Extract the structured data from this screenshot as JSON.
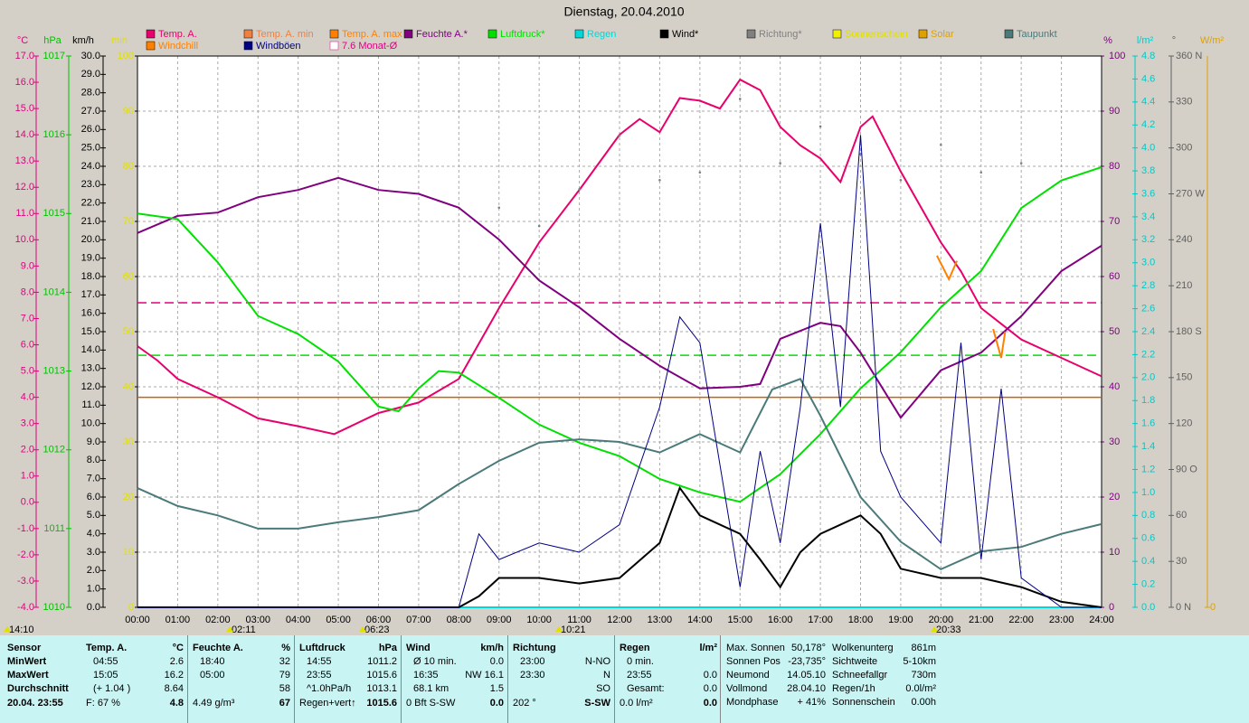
{
  "chart_data": {
    "type": "line",
    "title": "Dienstag, 20.04.2010",
    "axes": {
      "temp": {
        "title": "°C",
        "color": "#e0007f",
        "lim": [
          -4,
          17
        ],
        "ticks": [
          {
            "value": -4,
            "label": "-4.0"
          },
          {
            "value": -3,
            "label": "-3.0"
          },
          {
            "value": -2,
            "label": "-2.0"
          },
          {
            "value": -1,
            "label": "-1.0"
          },
          {
            "value": 0,
            "label": "0.0"
          },
          {
            "value": 1,
            "label": "1.0"
          },
          {
            "value": 2,
            "label": "2.0"
          },
          {
            "value": 3,
            "label": "3.0"
          },
          {
            "value": 4,
            "label": "4.0"
          },
          {
            "value": 5,
            "label": "5.0"
          },
          {
            "value": 6,
            "label": "6.0"
          },
          {
            "value": 7,
            "label": "7.0"
          },
          {
            "value": 8,
            "label": "8.0"
          },
          {
            "value": 9,
            "label": "9.0"
          },
          {
            "value": 10,
            "label": "10.0"
          },
          {
            "value": 11,
            "label": "11.0"
          },
          {
            "value": 12,
            "label": "12.0"
          },
          {
            "value": 13,
            "label": "13.0"
          },
          {
            "value": 14,
            "label": "14.0"
          },
          {
            "value": 15,
            "label": "15.0"
          },
          {
            "value": 16,
            "label": "16.0"
          },
          {
            "value": 17,
            "label": "17.0"
          }
        ]
      },
      "hpa": {
        "title": "hPa",
        "color": "#00c000",
        "lim": [
          1010,
          1017
        ],
        "ticks": [
          1010,
          1011,
          1012,
          1013,
          1014,
          1015,
          1016,
          1017
        ]
      },
      "kmh": {
        "title": "km/h",
        "color": "#000000",
        "lim": [
          0,
          30
        ],
        "ticks": [
          {
            "value": 0,
            "label": "0.0"
          },
          {
            "value": 1,
            "label": "1.0"
          },
          {
            "value": 2,
            "label": "2.0"
          },
          {
            "value": 3,
            "label": "3.0"
          },
          {
            "value": 4,
            "label": "4.0"
          },
          {
            "value": 5,
            "label": "5.0"
          },
          {
            "value": 6,
            "label": "6.0"
          },
          {
            "value": 7,
            "label": "7.0"
          },
          {
            "value": 8,
            "label": "8.0"
          },
          {
            "value": 9,
            "label": "9.0"
          },
          {
            "value": 10,
            "label": "10.0"
          },
          {
            "value": 11,
            "label": "11.0"
          },
          {
            "value": 12,
            "label": "12.0"
          },
          {
            "value": 13,
            "label": "13.0"
          },
          {
            "value": 14,
            "label": "14.0"
          },
          {
            "value": 15,
            "label": "15.0"
          },
          {
            "value": 16,
            "label": "16.0"
          },
          {
            "value": 17,
            "label": "17.0"
          },
          {
            "value": 18,
            "label": "18.0"
          },
          {
            "value": 19,
            "label": "19.0"
          },
          {
            "value": 20,
            "label": "20.0"
          },
          {
            "value": 21,
            "label": "21.0"
          },
          {
            "value": 22,
            "label": "22.0"
          },
          {
            "value": 23,
            "label": "23.0"
          },
          {
            "value": 24,
            "label": "24.0"
          },
          {
            "value": 25,
            "label": "25.0"
          },
          {
            "value": 26,
            "label": "26.0"
          },
          {
            "value": 27,
            "label": "27.0"
          },
          {
            "value": 28,
            "label": "28.0"
          },
          {
            "value": 29,
            "label": "29.0"
          },
          {
            "value": 30,
            "label": "30.0"
          }
        ]
      },
      "min": {
        "title": "min",
        "color": "#e0e000",
        "lim": [
          0,
          100
        ],
        "ticks": [
          0,
          10,
          20,
          30,
          40,
          50,
          60,
          70,
          80,
          90,
          100
        ]
      },
      "pct": {
        "title": "%",
        "color": "#800080",
        "lim": [
          0,
          100
        ],
        "ticks": [
          0,
          10,
          20,
          30,
          40,
          50,
          60,
          70,
          80,
          90,
          100
        ]
      },
      "mm": {
        "title": "l/m²",
        "color": "#00c8c8",
        "lim": [
          0,
          4.8
        ],
        "ticks": [
          {
            "value": 0,
            "label": "0.0"
          },
          0.2,
          0.4,
          0.6,
          0.8,
          {
            "value": 1,
            "label": "1.0"
          },
          1.2,
          1.4,
          1.6,
          1.8,
          {
            "value": 2,
            "label": "2.0"
          },
          2.2,
          2.4,
          2.6,
          2.8,
          {
            "value": 3,
            "label": "3.0"
          },
          3.2,
          3.4,
          3.6,
          3.8,
          {
            "value": 4,
            "label": "4.0"
          },
          4.2,
          4.4,
          4.6,
          4.8
        ]
      },
      "deg": {
        "title": "°",
        "color": "#606060",
        "lim": [
          0,
          360
        ],
        "ticks": [
          {
            "value": 0,
            "label": "0 N"
          },
          30,
          60,
          {
            "value": 90,
            "label": "90 O"
          },
          120,
          150,
          {
            "value": 180,
            "label": "180 S"
          },
          210,
          240,
          {
            "value": 270,
            "label": "270 W"
          },
          300,
          330,
          {
            "value": 360,
            "label": "360 N"
          }
        ]
      },
      "wm2": {
        "title": "W/m²",
        "color": "#e0a000",
        "ticks": [
          0
        ]
      }
    },
    "xlim": [
      0,
      24
    ],
    "xticks": [
      {
        "value": 0,
        "label": "00:00"
      },
      {
        "value": 1,
        "label": "01:00"
      },
      {
        "value": 2,
        "label": "02:00"
      },
      {
        "value": 3,
        "label": "03:00"
      },
      {
        "value": 4,
        "label": "04:00"
      },
      {
        "value": 5,
        "label": "05:00"
      },
      {
        "value": 6,
        "label": "06:00"
      },
      {
        "value": 7,
        "label": "07:00"
      },
      {
        "value": 8,
        "label": "08:00"
      },
      {
        "value": 9,
        "label": "09:00"
      },
      {
        "value": 10,
        "label": "10:00"
      },
      {
        "value": 11,
        "label": "11:00"
      },
      {
        "value": 12,
        "label": "12:00"
      },
      {
        "value": 13,
        "label": "13:00"
      },
      {
        "value": 14,
        "label": "14:00"
      },
      {
        "value": 15,
        "label": "15:00"
      },
      {
        "value": 16,
        "label": "16:00"
      },
      {
        "value": 17,
        "label": "17:00"
      },
      {
        "value": 18,
        "label": "18:00"
      },
      {
        "value": 19,
        "label": "19:00"
      },
      {
        "value": 20,
        "label": "20:00"
      },
      {
        "value": 21,
        "label": "21:00"
      },
      {
        "value": 22,
        "label": "22:00"
      },
      {
        "value": 23,
        "label": "23:00"
      },
      {
        "value": 24,
        "label": "24:00"
      }
    ],
    "grid": true,
    "series": [
      {
        "name": "Temp. A.",
        "color": "#e8006c",
        "axis": "temp",
        "x": [
          0,
          0.5,
          1,
          2,
          3,
          4,
          4.9,
          6,
          7,
          8,
          9,
          10,
          11,
          12,
          12.5,
          13,
          13.5,
          14,
          14.5,
          15,
          15.5,
          16,
          16.5,
          17,
          17.5,
          18,
          18.3,
          19,
          20,
          20.5,
          21,
          21.5,
          22,
          23,
          24
        ],
        "values": [
          5.95,
          5.4,
          4.7,
          4.0,
          3.2,
          2.9,
          2.6,
          3.4,
          3.8,
          4.7,
          7.4,
          9.9,
          11.9,
          14.0,
          14.6,
          14.1,
          15.4,
          15.3,
          15.0,
          16.1,
          15.7,
          14.3,
          13.6,
          13.1,
          12.2,
          14.3,
          14.7,
          12.6,
          9.9,
          8.8,
          7.4,
          6.8,
          6.2,
          5.5,
          4.8
        ]
      },
      {
        "name": "Temp. A. min",
        "color": "#f08040",
        "axis": "temp",
        "x": [],
        "values": []
      },
      {
        "name": "Temp. A. max",
        "color": "#ff8000",
        "axis": "temp",
        "x": [],
        "values": []
      },
      {
        "name": "Feuchte A.*",
        "color": "#800080",
        "axis": "pct",
        "x": [
          0,
          1,
          2,
          3,
          4,
          5,
          6,
          7,
          8,
          9,
          10,
          11,
          12,
          13,
          14,
          15,
          15.5,
          16,
          17,
          17.5,
          18,
          19,
          20,
          21,
          22,
          23,
          24
        ],
        "values": [
          67.9,
          71,
          71.6,
          74.4,
          75.7,
          77.9,
          75.7,
          75,
          72.5,
          66.7,
          59.3,
          54.4,
          48.7,
          43.8,
          39.7,
          40,
          40.5,
          48.7,
          51.6,
          51,
          46.2,
          34.4,
          43,
          46.2,
          52.8,
          61,
          65.6
        ]
      },
      {
        "name": "Luftdruck*",
        "color": "#00e000",
        "axis": "hpa",
        "x": [
          0,
          1,
          2,
          3,
          4,
          5,
          6,
          6.5,
          7,
          7.5,
          8,
          9,
          10,
          11,
          12,
          13,
          14,
          15,
          16,
          17,
          18,
          19,
          20,
          21,
          22,
          23,
          24
        ],
        "values": [
          1015.0,
          1014.93,
          1014.38,
          1013.7,
          1013.47,
          1013.12,
          1012.55,
          1012.49,
          1012.78,
          1013.0,
          1012.98,
          1012.66,
          1012.32,
          1012.09,
          1011.92,
          1011.63,
          1011.46,
          1011.34,
          1011.69,
          1012.2,
          1012.78,
          1013.24,
          1013.81,
          1014.27,
          1015.07,
          1015.42,
          1015.59
        ]
      },
      {
        "name": "Regen",
        "color": "#00d8d8",
        "axis": "mm",
        "x": [
          0,
          24
        ],
        "values": [
          0,
          0
        ]
      },
      {
        "name": "Wind*",
        "color": "#000000",
        "axis": "kmh",
        "x": [
          0,
          8,
          8.5,
          9,
          10,
          11,
          12,
          13,
          13.5,
          14,
          15,
          15.5,
          16,
          16.5,
          17,
          18,
          18.5,
          19,
          20,
          21,
          22,
          23,
          24
        ],
        "values": [
          0,
          0,
          0.6,
          1.6,
          1.6,
          1.3,
          1.6,
          3.5,
          6.5,
          5.0,
          4.0,
          2.6,
          1.1,
          3.0,
          4.0,
          5.0,
          4.0,
          2.1,
          1.6,
          1.6,
          1.1,
          0.3,
          0
        ]
      },
      {
        "name": "Richtung*",
        "color": "#808080",
        "axis": "deg",
        "x": [
          9,
          10,
          11,
          12,
          13,
          14,
          15,
          16,
          17,
          18,
          19,
          20,
          21,
          22
        ],
        "values": [
          261,
          249,
          273,
          308,
          279,
          284,
          332,
          290,
          314,
          296,
          279,
          302,
          284,
          290
        ]
      },
      {
        "name": "Sonnenschein",
        "color": "#f0f000",
        "axis": "min",
        "x": [],
        "values": []
      },
      {
        "name": "Solar",
        "color": "#e0a000",
        "axis": "wm2",
        "x": [],
        "values": []
      },
      {
        "name": "Taupunkt",
        "color": "#4a7a7a",
        "axis": "temp",
        "x": [
          0,
          1,
          2,
          3,
          4,
          5,
          6,
          7,
          8,
          9,
          10,
          11,
          12,
          13,
          14,
          15,
          15.8,
          16.5,
          17,
          18,
          19,
          20,
          21,
          22,
          23,
          24
        ],
        "values": [
          0.54,
          -0.14,
          -0.5,
          -1.0,
          -1.0,
          -0.76,
          -0.56,
          -0.3,
          0.7,
          1.58,
          2.27,
          2.4,
          2.3,
          1.9,
          2.6,
          1.9,
          4.3,
          4.7,
          3.3,
          0.2,
          -1.5,
          -2.55,
          -1.87,
          -1.7,
          -1.2,
          -0.83
        ]
      },
      {
        "name": "Windchill",
        "color": "#ff8000",
        "axis": "temp",
        "x": [
          19.9,
          20.2,
          20.4,
          21.0,
          21.3,
          21.5,
          21.6
        ],
        "values": [
          9.4,
          8.5,
          9.2,
          null,
          6.6,
          5.5,
          6.5
        ]
      },
      {
        "name": "Windböen",
        "color": "#000080",
        "axis": "kmh",
        "x": [
          0,
          8,
          8.5,
          9,
          10,
          11,
          12,
          13,
          13.5,
          14,
          15,
          15.5,
          16,
          16.5,
          17,
          17.5,
          18,
          18.5,
          19,
          20,
          20.5,
          21,
          21.5,
          22,
          23,
          24
        ],
        "values": [
          0,
          0,
          4.0,
          2.6,
          3.5,
          3.0,
          4.5,
          10.9,
          15.8,
          14.4,
          1.1,
          8.5,
          3.5,
          10.9,
          20.9,
          10.9,
          25.7,
          8.5,
          6.0,
          3.5,
          14.4,
          2.6,
          11.9,
          1.6,
          0,
          0
        ]
      }
    ],
    "reference_lines": [
      {
        "label": "7.6 Monat-Ø",
        "axis": "temp",
        "value": 7.6,
        "color": "#e0007f",
        "dash": true
      },
      {
        "axis": "hpa",
        "value": 1013.2,
        "color": "#00e000",
        "dash": true
      },
      {
        "axis": "temp",
        "value": 4.0,
        "color": "#d06000",
        "dash": false
      }
    ],
    "time_markers": [
      "14:10",
      "02:11",
      "06:23",
      "10:21",
      "20:33"
    ]
  },
  "stats": {
    "row_labels": [
      "Sensor",
      "MinWert",
      "MaxWert",
      "Durchschnitt",
      "20.04. 23:55"
    ],
    "sections": [
      {
        "title": "Temp. A.",
        "unit": "°C",
        "rows": [
          [
            "04:55",
            "2.6"
          ],
          [
            "15:05",
            "16.2"
          ],
          [
            "(+ 1.04 )",
            "8.64"
          ],
          [
            "F: 67 %",
            "4.8"
          ]
        ]
      },
      {
        "title": "Feuchte A.",
        "unit": "%",
        "rows": [
          [
            "18:40",
            "32"
          ],
          [
            "05:00",
            "79"
          ],
          [
            null,
            "58"
          ],
          [
            "4.49 g/m³",
            "67"
          ]
        ]
      },
      {
        "title": "Luftdruck",
        "unit": "hPa",
        "rows": [
          [
            "14:55",
            "1011.2"
          ],
          [
            "23:55",
            "1015.6"
          ],
          [
            "^1.0hPa/h",
            "1013.1"
          ],
          [
            "Regen+vert↑",
            "1015.6"
          ]
        ]
      },
      {
        "title": "Wind",
        "unit": "km/h",
        "rows": [
          [
            "Ø 10 min.",
            "0.0"
          ],
          [
            "16:35",
            "NW 16.1"
          ],
          [
            "68.1 km",
            "1.5"
          ],
          [
            "0 Bft S-SW",
            "0.0"
          ]
        ]
      },
      {
        "title": "Richtung",
        "unit": null,
        "rows": [
          [
            "23:00",
            "N-NO"
          ],
          [
            "23:30",
            "N"
          ],
          [
            null,
            "SO"
          ],
          [
            "202 °",
            "S-SW"
          ]
        ]
      },
      {
        "title": "Regen",
        "unit": "l/m²",
        "rows": [
          [
            "0 min.",
            null
          ],
          [
            "23:55",
            "0.0"
          ],
          [
            "Gesamt:",
            "0.0"
          ],
          [
            "0.0 l/m²",
            "0.0"
          ]
        ]
      }
    ],
    "astro": [
      [
        "Max. Sonnen",
        "50,178°"
      ],
      [
        "Sonnen Pos",
        "-23,735°"
      ],
      [
        "Neumond",
        "14.05.10"
      ],
      [
        "Vollmond",
        "28.04.10"
      ],
      [
        "Mondphase",
        "+ 41%"
      ]
    ],
    "clouds": [
      [
        "Wolkenunterg",
        "861m"
      ],
      [
        "Sichtweite",
        "5-10km"
      ],
      [
        "Schneefallgr",
        "730m"
      ],
      [
        "Regen/1h",
        "0.0l/m²"
      ],
      [
        "Sonnenschein",
        "0.00h"
      ]
    ]
  }
}
